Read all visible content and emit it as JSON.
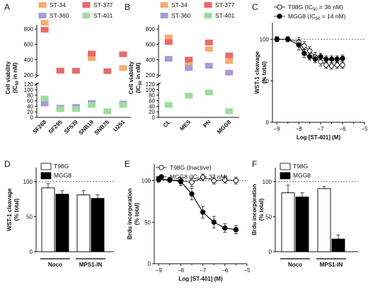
{
  "colors": {
    "ST-34": "#f6ad6e",
    "ST-377": "#e86a6b",
    "ST-360": "#a89ad6",
    "ST-401": "#9ddc9c",
    "T98G": "#ffffff",
    "MGG8": "#000000"
  },
  "chart_data": [
    {
      "panel": "A",
      "type": "scatter",
      "ylabel": "Cell viability",
      "ylabel2": "(IC50 in nM)",
      "categories": [
        "SF268",
        "SF295",
        "SF539",
        "SNB19",
        "SNB75",
        "U251"
      ],
      "legend": [
        "ST-34",
        "ST-377",
        "ST-360",
        "ST-401"
      ],
      "yticks_top": [
        "200",
        "400",
        "600",
        "800"
      ],
      "yticks_bottom": [
        "0",
        "20",
        "40",
        "60",
        "80",
        "100",
        "120"
      ],
      "series": [
        {
          "name": "ST-34",
          "values": [
            880,
            255,
            null,
            420,
            null,
            290
          ]
        },
        {
          "name": "ST-377",
          "values": [
            790,
            255,
            255,
            480,
            250,
            470
          ]
        },
        {
          "name": "ST-360",
          "values": [
            50,
            35,
            38,
            52,
            null,
            50
          ]
        },
        {
          "name": "ST-401",
          "values": [
            68,
            30,
            30,
            45,
            22,
            45
          ]
        }
      ]
    },
    {
      "panel": "B",
      "type": "scatter",
      "ylabel": "Cell viability",
      "ylabel2": "(IC50 in nM)",
      "categories": [
        "CL",
        "MES",
        "PN",
        "MGG8"
      ],
      "legend": [
        "ST-34",
        "ST-377",
        "ST-360",
        "ST-401"
      ],
      "yticks_top": [
        "200",
        "400",
        "600",
        "800"
      ],
      "yticks_bottom": [
        "0",
        "20",
        "40",
        "60",
        "80",
        "100",
        "120"
      ],
      "series": [
        {
          "name": "ST-34",
          "values": [
            690,
            345,
            540,
            380
          ]
        },
        {
          "name": "ST-377",
          "values": [
            630,
            400,
            625,
            455
          ]
        },
        {
          "name": "ST-360",
          "values": [
            410,
            290,
            320,
            230
          ]
        },
        {
          "name": "ST-401",
          "values": [
            45,
            78,
            90,
            22
          ]
        }
      ]
    },
    {
      "panel": "C",
      "type": "line",
      "ylabel": "WST-1 cleavage",
      "ylabel2": "(% total)",
      "xlabel": "Log [ST-401] (M)",
      "xticks": [
        "-9",
        "-8",
        "-7",
        "-6",
        "-5"
      ],
      "yticks": [
        "0",
        "50",
        "100"
      ],
      "xlim": [
        -9.2,
        -5
      ],
      "ylim": [
        0,
        120
      ],
      "reference_y": 100,
      "series": [
        {
          "name": "T98G (IC50 = 36 nM)",
          "x": [
            -9,
            -8.5,
            -8,
            -7.75,
            -7.5,
            -7.25,
            -7,
            -6.75,
            -6.5,
            -6.25,
            -6
          ],
          "y": [
            100,
            100,
            97,
            92,
            86,
            79,
            73,
            69,
            68,
            69,
            69
          ]
        },
        {
          "name": "MGG8 (IC50 = 14 nM)",
          "x": [
            -9,
            -8.5,
            -8,
            -7.75,
            -7.5,
            -7.25,
            -7,
            -6.75,
            -6.5,
            -6.25,
            -6
          ],
          "y": [
            100,
            100,
            93,
            83,
            79,
            76,
            79,
            76,
            76,
            76,
            77
          ]
        }
      ]
    },
    {
      "panel": "D",
      "type": "bar",
      "ylabel": "WST-1 cleavage",
      "ylabel2": "(% total)",
      "categories": [
        "Noco",
        "MPS1-IN"
      ],
      "yticks": [
        "0",
        "50",
        "100"
      ],
      "ylim": [
        0,
        120
      ],
      "reference_y": 100,
      "series": [
        {
          "name": "T98G",
          "values": [
            91,
            81
          ],
          "errors": [
            6,
            6
          ]
        },
        {
          "name": "MGG8",
          "values": [
            82,
            76
          ],
          "errors": [
            5,
            5
          ]
        }
      ]
    },
    {
      "panel": "E",
      "type": "line",
      "ylabel": "Brdu incorporation",
      "ylabel2": "(% total)",
      "xlabel": "Log [ST-401] (M)",
      "xticks": [
        "-9",
        "-8",
        "-7",
        "-6",
        "-5"
      ],
      "yticks": [
        "0",
        "50",
        "100"
      ],
      "xlim": [
        -9.2,
        -5
      ],
      "ylim": [
        0,
        120
      ],
      "reference_y": 100,
      "series": [
        {
          "name": "T98G (Inactive)",
          "x": [
            -9,
            -8.5,
            -8,
            -7.5,
            -7,
            -6.5,
            -6,
            -5.5
          ],
          "y": [
            101,
            101,
            100,
            98,
            104,
            100,
            101,
            100
          ]
        },
        {
          "name": "MGG8 (IC50 = 37 nM)",
          "x": [
            -9,
            -8.5,
            -8,
            -7.5,
            -7,
            -6.5,
            -6,
            -5.5
          ],
          "y": [
            102,
            101,
            99,
            84,
            62,
            50,
            43,
            41
          ]
        }
      ]
    },
    {
      "panel": "F",
      "type": "bar",
      "ylabel": "Brdu incorporation",
      "ylabel2": "(% total)",
      "categories": [
        "Noco",
        "MPS1-IN"
      ],
      "yticks": [
        "0",
        "50",
        "100"
      ],
      "ylim": [
        0,
        120
      ],
      "reference_y": 100,
      "series": [
        {
          "name": "T98G",
          "values": [
            84,
            90
          ],
          "errors": [
            11,
            3
          ]
        },
        {
          "name": "MGG8",
          "values": [
            78,
            18
          ],
          "errors": [
            6,
            6
          ]
        }
      ]
    }
  ]
}
